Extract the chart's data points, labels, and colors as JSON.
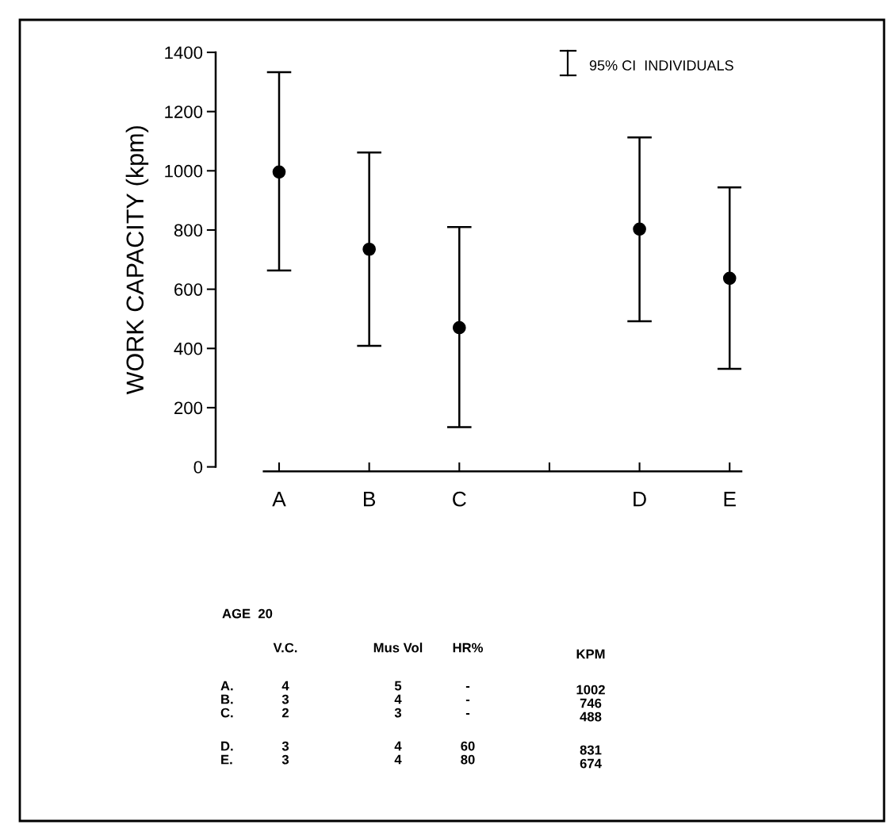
{
  "chart_data": {
    "type": "scatter",
    "ylabel": "WORK CAPACITY (kpm)",
    "categories": [
      "A",
      "B",
      "C",
      null,
      "D",
      "E"
    ],
    "series": [
      {
        "color": "#000000",
        "values": [
          996,
          735,
          470,
          null,
          803,
          637
        ],
        "errors": [
          [
            663,
            1333
          ],
          [
            409,
            1062
          ],
          [
            134,
            810
          ],
          null,
          [
            492,
            1113
          ],
          [
            331,
            944
          ]
        ]
      }
    ],
    "ylim": [
      0,
      1400
    ],
    "yticks": [
      0,
      200,
      400,
      600,
      800,
      1000,
      1200,
      1400
    ],
    "marker": "circle",
    "grid": false,
    "annotations": [
      "95% CI  INDIVIDUALS",
      "AGE  20",
      "V.C.",
      "Mus Vol",
      "HR%",
      "KPM",
      "A.",
      "4",
      "5",
      "-",
      "1002",
      "B.",
      "3",
      "4",
      "-",
      "746",
      "C.",
      "2",
      "3",
      "-",
      "488",
      "D.",
      "3",
      "4",
      "60",
      "831",
      "E.",
      "3",
      "4",
      "80",
      "674"
    ]
  }
}
